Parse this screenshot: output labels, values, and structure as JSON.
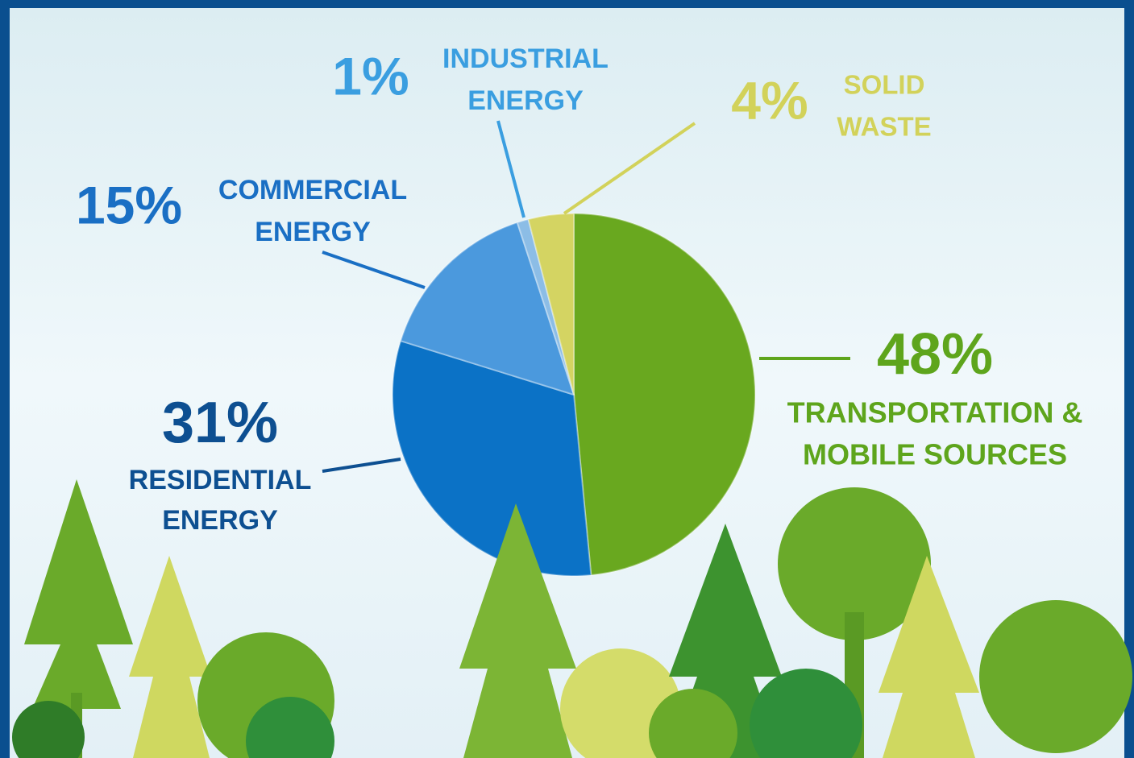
{
  "chart_data": {
    "type": "pie",
    "categories": [
      [
        "TRANSPORTATION &",
        "MOBILE SOURCES"
      ],
      [
        "RESIDENTIAL",
        "ENERGY"
      ],
      [
        "COMMERCIAL",
        "ENERGY"
      ],
      [
        "INDUSTRIAL",
        "ENERGY"
      ],
      [
        "SOLID",
        "WASTE"
      ]
    ],
    "values": [
      48,
      31,
      15,
      1,
      4
    ],
    "value_labels": [
      "48%",
      "31%",
      "15%",
      "1%",
      "4%"
    ],
    "colors": [
      "#69a81f",
      "#0b72c6",
      "#4b99dd",
      "#8cbde6",
      "#d4d462"
    ],
    "label_colors": [
      "#5ea51c",
      "#0d4f91",
      "#1a6fc4",
      "#3a9ee0",
      "#d2d25a"
    ]
  }
}
